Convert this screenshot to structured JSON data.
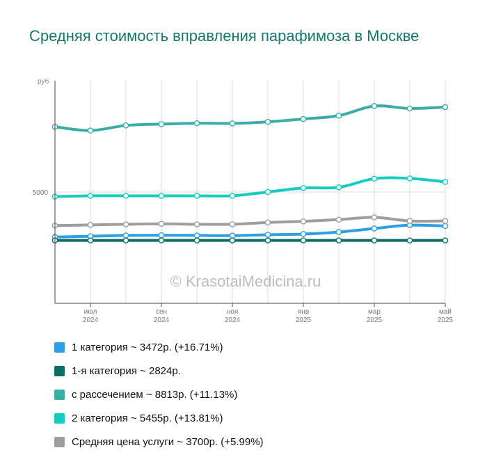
{
  "title": "Средняя стоимость вправления парафимоза в Москве",
  "watermark": "© KrasotaiMedicina.ru",
  "chart_data": {
    "type": "line",
    "y_unit": "руб.",
    "y_ticks": [
      5000
    ],
    "ylim": [
      0,
      10000
    ],
    "grid": true,
    "x_labels": [
      {
        "month": "июл",
        "year": "2024",
        "index": 1
      },
      {
        "month": "сен",
        "year": "2024",
        "index": 3
      },
      {
        "month": "ноя",
        "year": "2024",
        "index": 5
      },
      {
        "month": "янв",
        "year": "2025",
        "index": 7
      },
      {
        "month": "мар",
        "year": "2025",
        "index": 9
      },
      {
        "month": "май",
        "year": "2025",
        "index": 11
      }
    ],
    "x_months": [
      "2024-06",
      "2024-07",
      "2024-08",
      "2024-09",
      "2024-10",
      "2024-11",
      "2024-12",
      "2025-01",
      "2025-02",
      "2025-03",
      "2025-04",
      "2025-05"
    ],
    "series": [
      {
        "name": "1 категория",
        "legend": "1 категория ~ 3472р. (+16.71%)",
        "color": "#2e9fe0",
        "values": [
          2975,
          3010,
          3050,
          3060,
          3050,
          3040,
          3080,
          3110,
          3200,
          3360,
          3510,
          3472
        ]
      },
      {
        "name": "1-я категория",
        "legend": "1-я категория ~ 2824р.",
        "color": "#0d6f63",
        "values": [
          2824,
          2824,
          2824,
          2824,
          2824,
          2824,
          2824,
          2824,
          2824,
          2824,
          2824,
          2824
        ]
      },
      {
        "name": "с рассечением",
        "legend": "с рассечением ~ 8813р. (+11.13%)",
        "color": "#3aaea6",
        "values": [
          7930,
          7760,
          7990,
          8050,
          8090,
          8080,
          8150,
          8280,
          8430,
          8860,
          8750,
          8813
        ]
      },
      {
        "name": "2 категория",
        "legend": "2 категория ~ 5455р. (+13.81%)",
        "color": "#14ccc0",
        "values": [
          4793,
          4830,
          4830,
          4830,
          4830,
          4830,
          5000,
          5180,
          5210,
          5600,
          5610,
          5455
        ]
      },
      {
        "name": "Средняя цена услуги",
        "legend": "Средняя цена услуги ~ 3700р. (+5.99%)",
        "color": "#9e9e9e",
        "values": [
          3491,
          3520,
          3550,
          3570,
          3550,
          3550,
          3630,
          3680,
          3760,
          3860,
          3700,
          3700
        ]
      }
    ]
  }
}
